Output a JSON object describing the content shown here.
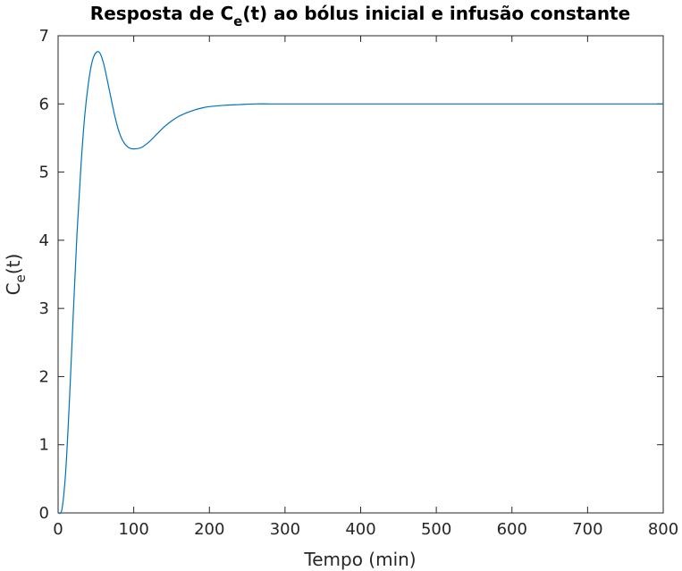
{
  "chart_data": {
    "type": "line",
    "title": {
      "pre": "Resposta de C",
      "sub": "e",
      "post": "(t) ao bólus inicial e infusão constante"
    },
    "xlabel": "Tempo (min)",
    "ylabel": {
      "main": "C",
      "sub": "e",
      "post": "(t)"
    },
    "xlim": [
      0,
      800
    ],
    "ylim": [
      0,
      7
    ],
    "xticks": [
      0,
      100,
      200,
      300,
      400,
      500,
      600,
      700,
      800
    ],
    "yticks": [
      0,
      1,
      2,
      3,
      4,
      5,
      6,
      7
    ],
    "grid": false,
    "colors": {
      "line": "#0072BD",
      "axis": "#262626"
    },
    "series": [
      {
        "x": [
          0,
          5,
          10,
          15,
          20,
          25,
          30,
          35,
          40,
          45,
          50,
          55,
          60,
          65,
          70,
          75,
          80,
          85,
          90,
          95,
          100,
          110,
          120,
          130,
          140,
          150,
          160,
          170,
          180,
          190,
          200,
          220,
          240,
          260,
          280,
          300,
          320,
          350,
          400,
          500,
          600,
          700,
          800
        ],
        "y": [
          0,
          0.05,
          0.6,
          1.65,
          2.9,
          4.1,
          5.05,
          5.8,
          6.3,
          6.62,
          6.75,
          6.75,
          6.6,
          6.35,
          6.08,
          5.82,
          5.61,
          5.47,
          5.39,
          5.35,
          5.34,
          5.36,
          5.44,
          5.55,
          5.66,
          5.75,
          5.82,
          5.87,
          5.91,
          5.94,
          5.96,
          5.98,
          5.99,
          6.0,
          6.0,
          6.0,
          6.0,
          6.0,
          6.0,
          6.0,
          6.0,
          6.0,
          6.0
        ]
      }
    ]
  }
}
